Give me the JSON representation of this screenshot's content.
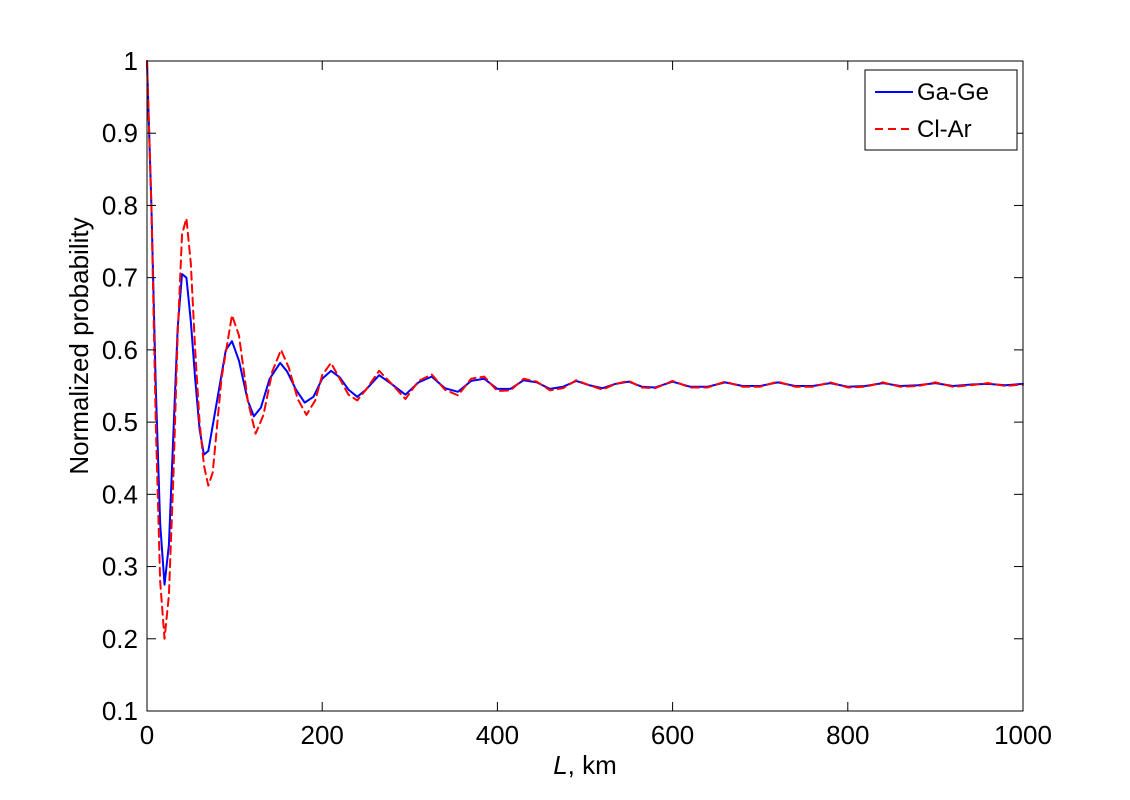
{
  "chart_data": {
    "type": "line",
    "xlabel_italic": "L",
    "xlabel_rest": ", km",
    "ylabel": "Normalized probability",
    "xlim": [
      0,
      1000
    ],
    "ylim": [
      0.1,
      1.0
    ],
    "xticks": [
      0,
      200,
      400,
      600,
      800,
      1000
    ],
    "xtick_labels": [
      "0",
      "200",
      "400",
      "600",
      "800",
      "1000"
    ],
    "yticks": [
      0.1,
      0.2,
      0.3,
      0.4,
      0.5,
      0.6,
      0.7,
      0.8,
      0.9,
      1.0
    ],
    "ytick_labels": [
      "0.1",
      "0.2",
      "0.3",
      "0.4",
      "0.5",
      "0.6",
      "0.7",
      "0.8",
      "0.9",
      "1"
    ],
    "grid": false,
    "legend_position": "top-right",
    "series": [
      {
        "name": "Ga-Ge",
        "color": "#0000ff",
        "style": "solid",
        "x": [
          0,
          5,
          10,
          15,
          20,
          25,
          30,
          35,
          40,
          45,
          50,
          55,
          60,
          65,
          70,
          80,
          90,
          97,
          105,
          115,
          122,
          130,
          140,
          152,
          160,
          170,
          180,
          190,
          200,
          210,
          220,
          230,
          240,
          250,
          265,
          280,
          295,
          310,
          325,
          340,
          355,
          370,
          385,
          400,
          415,
          430,
          445,
          460,
          475,
          490,
          505,
          520,
          535,
          550,
          565,
          580,
          600,
          620,
          640,
          660,
          680,
          700,
          720,
          740,
          760,
          780,
          800,
          820,
          840,
          860,
          880,
          900,
          920,
          940,
          960,
          980,
          1000
        ],
        "y": [
          1.0,
          0.8,
          0.55,
          0.36,
          0.275,
          0.33,
          0.48,
          0.63,
          0.705,
          0.7,
          0.64,
          0.56,
          0.49,
          0.455,
          0.46,
          0.53,
          0.6,
          0.612,
          0.585,
          0.53,
          0.508,
          0.52,
          0.56,
          0.582,
          0.57,
          0.545,
          0.527,
          0.535,
          0.56,
          0.571,
          0.562,
          0.545,
          0.535,
          0.545,
          0.565,
          0.552,
          0.538,
          0.555,
          0.563,
          0.547,
          0.542,
          0.557,
          0.56,
          0.546,
          0.546,
          0.558,
          0.555,
          0.546,
          0.549,
          0.557,
          0.551,
          0.547,
          0.553,
          0.556,
          0.549,
          0.548,
          0.556,
          0.549,
          0.549,
          0.555,
          0.55,
          0.55,
          0.555,
          0.55,
          0.55,
          0.554,
          0.549,
          0.55,
          0.554,
          0.55,
          0.551,
          0.554,
          0.55,
          0.552,
          0.553,
          0.551,
          0.553
        ]
      },
      {
        "name": "Cl-Ar",
        "color": "#ff0000",
        "style": "dashed",
        "x": [
          0,
          5,
          10,
          15,
          20,
          25,
          30,
          35,
          40,
          45,
          50,
          55,
          60,
          65,
          70,
          75,
          85,
          97,
          105,
          115,
          124,
          133,
          143,
          153,
          162,
          172,
          182,
          192,
          200,
          210,
          220,
          230,
          240,
          250,
          265,
          280,
          295,
          310,
          325,
          340,
          355,
          370,
          385,
          400,
          415,
          430,
          445,
          460,
          475,
          490,
          505,
          520,
          535,
          550,
          565,
          580,
          600,
          620,
          640,
          660,
          680,
          700,
          720,
          740,
          760,
          780,
          800,
          820,
          840,
          860,
          880,
          900,
          920,
          940,
          960,
          980,
          1000
        ],
        "y": [
          1.0,
          0.8,
          0.5,
          0.28,
          0.2,
          0.26,
          0.42,
          0.62,
          0.76,
          0.782,
          0.72,
          0.6,
          0.5,
          0.44,
          0.412,
          0.43,
          0.56,
          0.648,
          0.62,
          0.53,
          0.484,
          0.51,
          0.57,
          0.6,
          0.575,
          0.532,
          0.51,
          0.53,
          0.565,
          0.582,
          0.56,
          0.538,
          0.53,
          0.545,
          0.571,
          0.552,
          0.532,
          0.557,
          0.566,
          0.545,
          0.537,
          0.56,
          0.563,
          0.543,
          0.544,
          0.56,
          0.556,
          0.544,
          0.547,
          0.558,
          0.551,
          0.545,
          0.553,
          0.557,
          0.548,
          0.547,
          0.557,
          0.548,
          0.548,
          0.556,
          0.549,
          0.549,
          0.556,
          0.549,
          0.549,
          0.555,
          0.548,
          0.549,
          0.555,
          0.549,
          0.55,
          0.555,
          0.549,
          0.551,
          0.554,
          0.55,
          0.552
        ]
      }
    ]
  }
}
